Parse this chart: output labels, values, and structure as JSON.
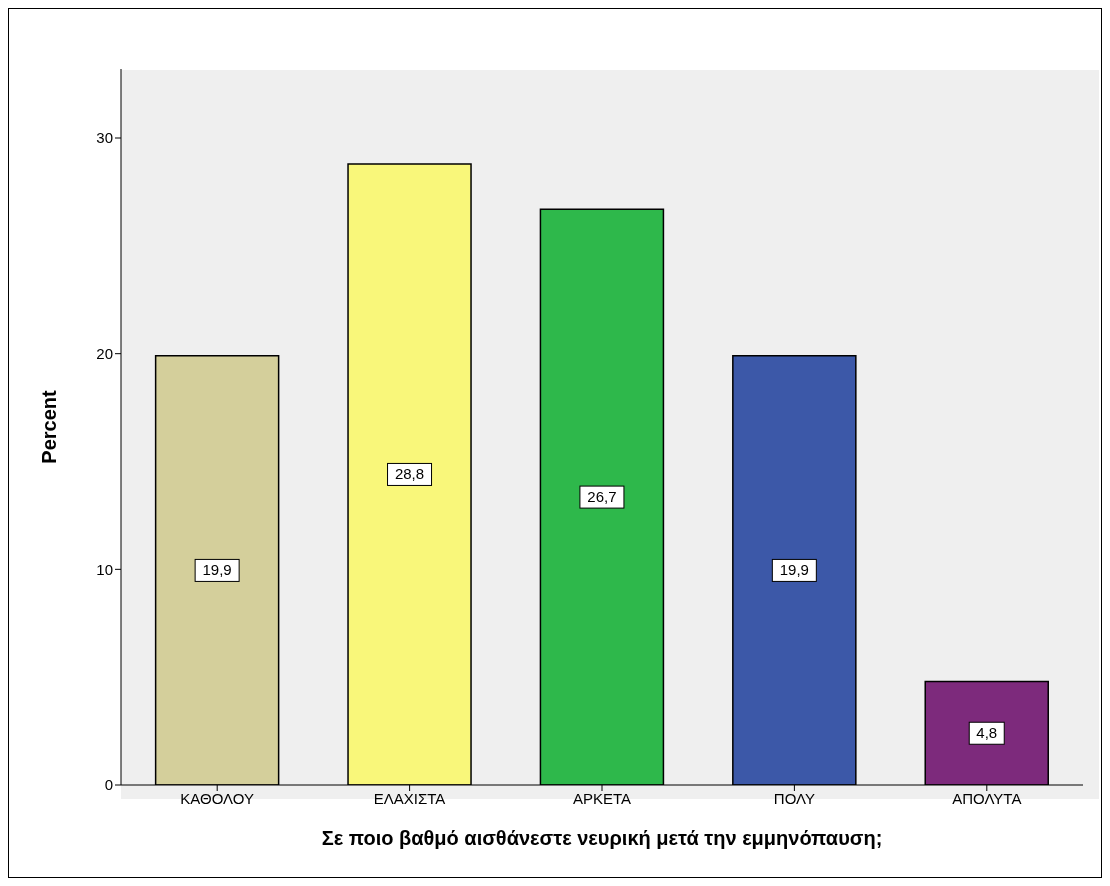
{
  "chart_data": {
    "type": "bar",
    "xlabel": "Σε ποιο βαθμό αισθάνεστε νευρική μετά την εμμηνόπαυση;",
    "ylabel": "Percent",
    "categories": [
      "ΚΑΘΟΛΟΥ",
      "ΕΛΑΧΙΣΤΑ",
      "ΑΡΚΕΤΑ",
      "ΠΟΛΥ",
      "ΑΠΟΛΥΤΑ"
    ],
    "values": [
      19.9,
      28.8,
      26.7,
      19.9,
      4.8
    ],
    "colors": [
      "#d4cf9b",
      "#f9f77a",
      "#2eb84b",
      "#3c58a8",
      "#7d2a7c"
    ],
    "value_labels": [
      "19,9",
      "28,8",
      "26,7",
      "19,9",
      "4,8"
    ],
    "ylim": [
      0,
      33.2
    ],
    "yticks": [
      0,
      10,
      20,
      30
    ],
    "grid": false
  }
}
